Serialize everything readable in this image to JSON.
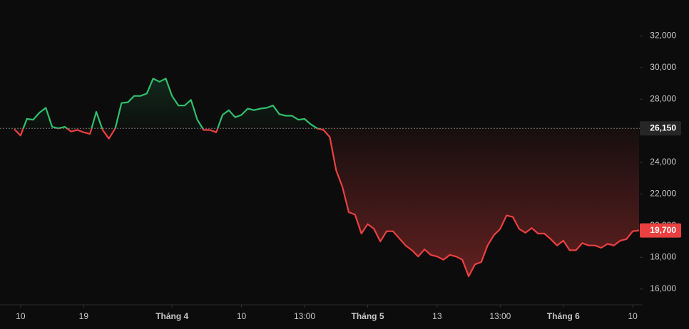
{
  "chart_data": {
    "type": "baseline",
    "categories": [
      null,
      "10",
      null,
      null,
      null,
      null,
      null,
      null,
      null,
      null,
      null,
      "19",
      null,
      null,
      null,
      null,
      null,
      null,
      null,
      null,
      null,
      null,
      null,
      null,
      null,
      "Tháng 4",
      null,
      null,
      null,
      null,
      null,
      null,
      null,
      null,
      null,
      null,
      "10",
      null,
      null,
      null,
      null,
      null,
      null,
      null,
      null,
      null,
      "13:00",
      null,
      null,
      null,
      null,
      null,
      null,
      null,
      null,
      null,
      "Tháng 5",
      null,
      null,
      null,
      null,
      null,
      null,
      null,
      null,
      null,
      null,
      "13",
      null,
      null,
      null,
      null,
      null,
      null,
      null,
      null,
      null,
      "13:00",
      null,
      null,
      null,
      null,
      null,
      null,
      null,
      null,
      null,
      "Tháng 6",
      null,
      null,
      null,
      null,
      null,
      null,
      null,
      null,
      null,
      null,
      "10",
      null
    ],
    "values": [
      26100,
      25700,
      26750,
      26700,
      27150,
      27450,
      26250,
      26150,
      26250,
      25950,
      26050,
      25900,
      25800,
      27200,
      26050,
      25500,
      26150,
      27750,
      27800,
      28200,
      28200,
      28350,
      29300,
      29100,
      29300,
      28200,
      27600,
      27600,
      27950,
      26700,
      26050,
      26050,
      25900,
      27000,
      27300,
      26850,
      27000,
      27400,
      27300,
      27400,
      27450,
      27600,
      27050,
      26950,
      26950,
      26700,
      26750,
      26400,
      26150,
      26050,
      25600,
      23500,
      22450,
      20850,
      20700,
      19500,
      20100,
      19800,
      19000,
      19650,
      19650,
      19200,
      18750,
      18450,
      18050,
      18500,
      18150,
      18050,
      17850,
      18150,
      18050,
      17850,
      16800,
      17550,
      17700,
      18750,
      19400,
      19800,
      20650,
      20550,
      19800,
      19550,
      19850,
      19500,
      19500,
      19150,
      18750,
      19050,
      18450,
      18450,
      18900,
      18750,
      18750,
      18600,
      18850,
      18750,
      19050,
      19150,
      19650,
      19700
    ],
    "baseline": {
      "value": 26150,
      "label": "26,150"
    },
    "last": {
      "value": 19700,
      "label": "19,700"
    },
    "up_color": "#2fbf6c",
    "down_color": "#ea4040",
    "ylim": [
      15000,
      33500
    ],
    "yticks": [
      {
        "value": 16000,
        "label": "16,000"
      },
      {
        "value": 18000,
        "label": "18,000"
      },
      {
        "value": 20000,
        "label": "20,000"
      },
      {
        "value": 22000,
        "label": "22,000"
      },
      {
        "value": 24000,
        "label": "24,000"
      },
      {
        "value": 26000,
        "label": "26,000"
      },
      {
        "value": 28000,
        "label": "28,000"
      },
      {
        "value": 30000,
        "label": "30,000"
      },
      {
        "value": 32000,
        "label": "32,000"
      }
    ]
  }
}
